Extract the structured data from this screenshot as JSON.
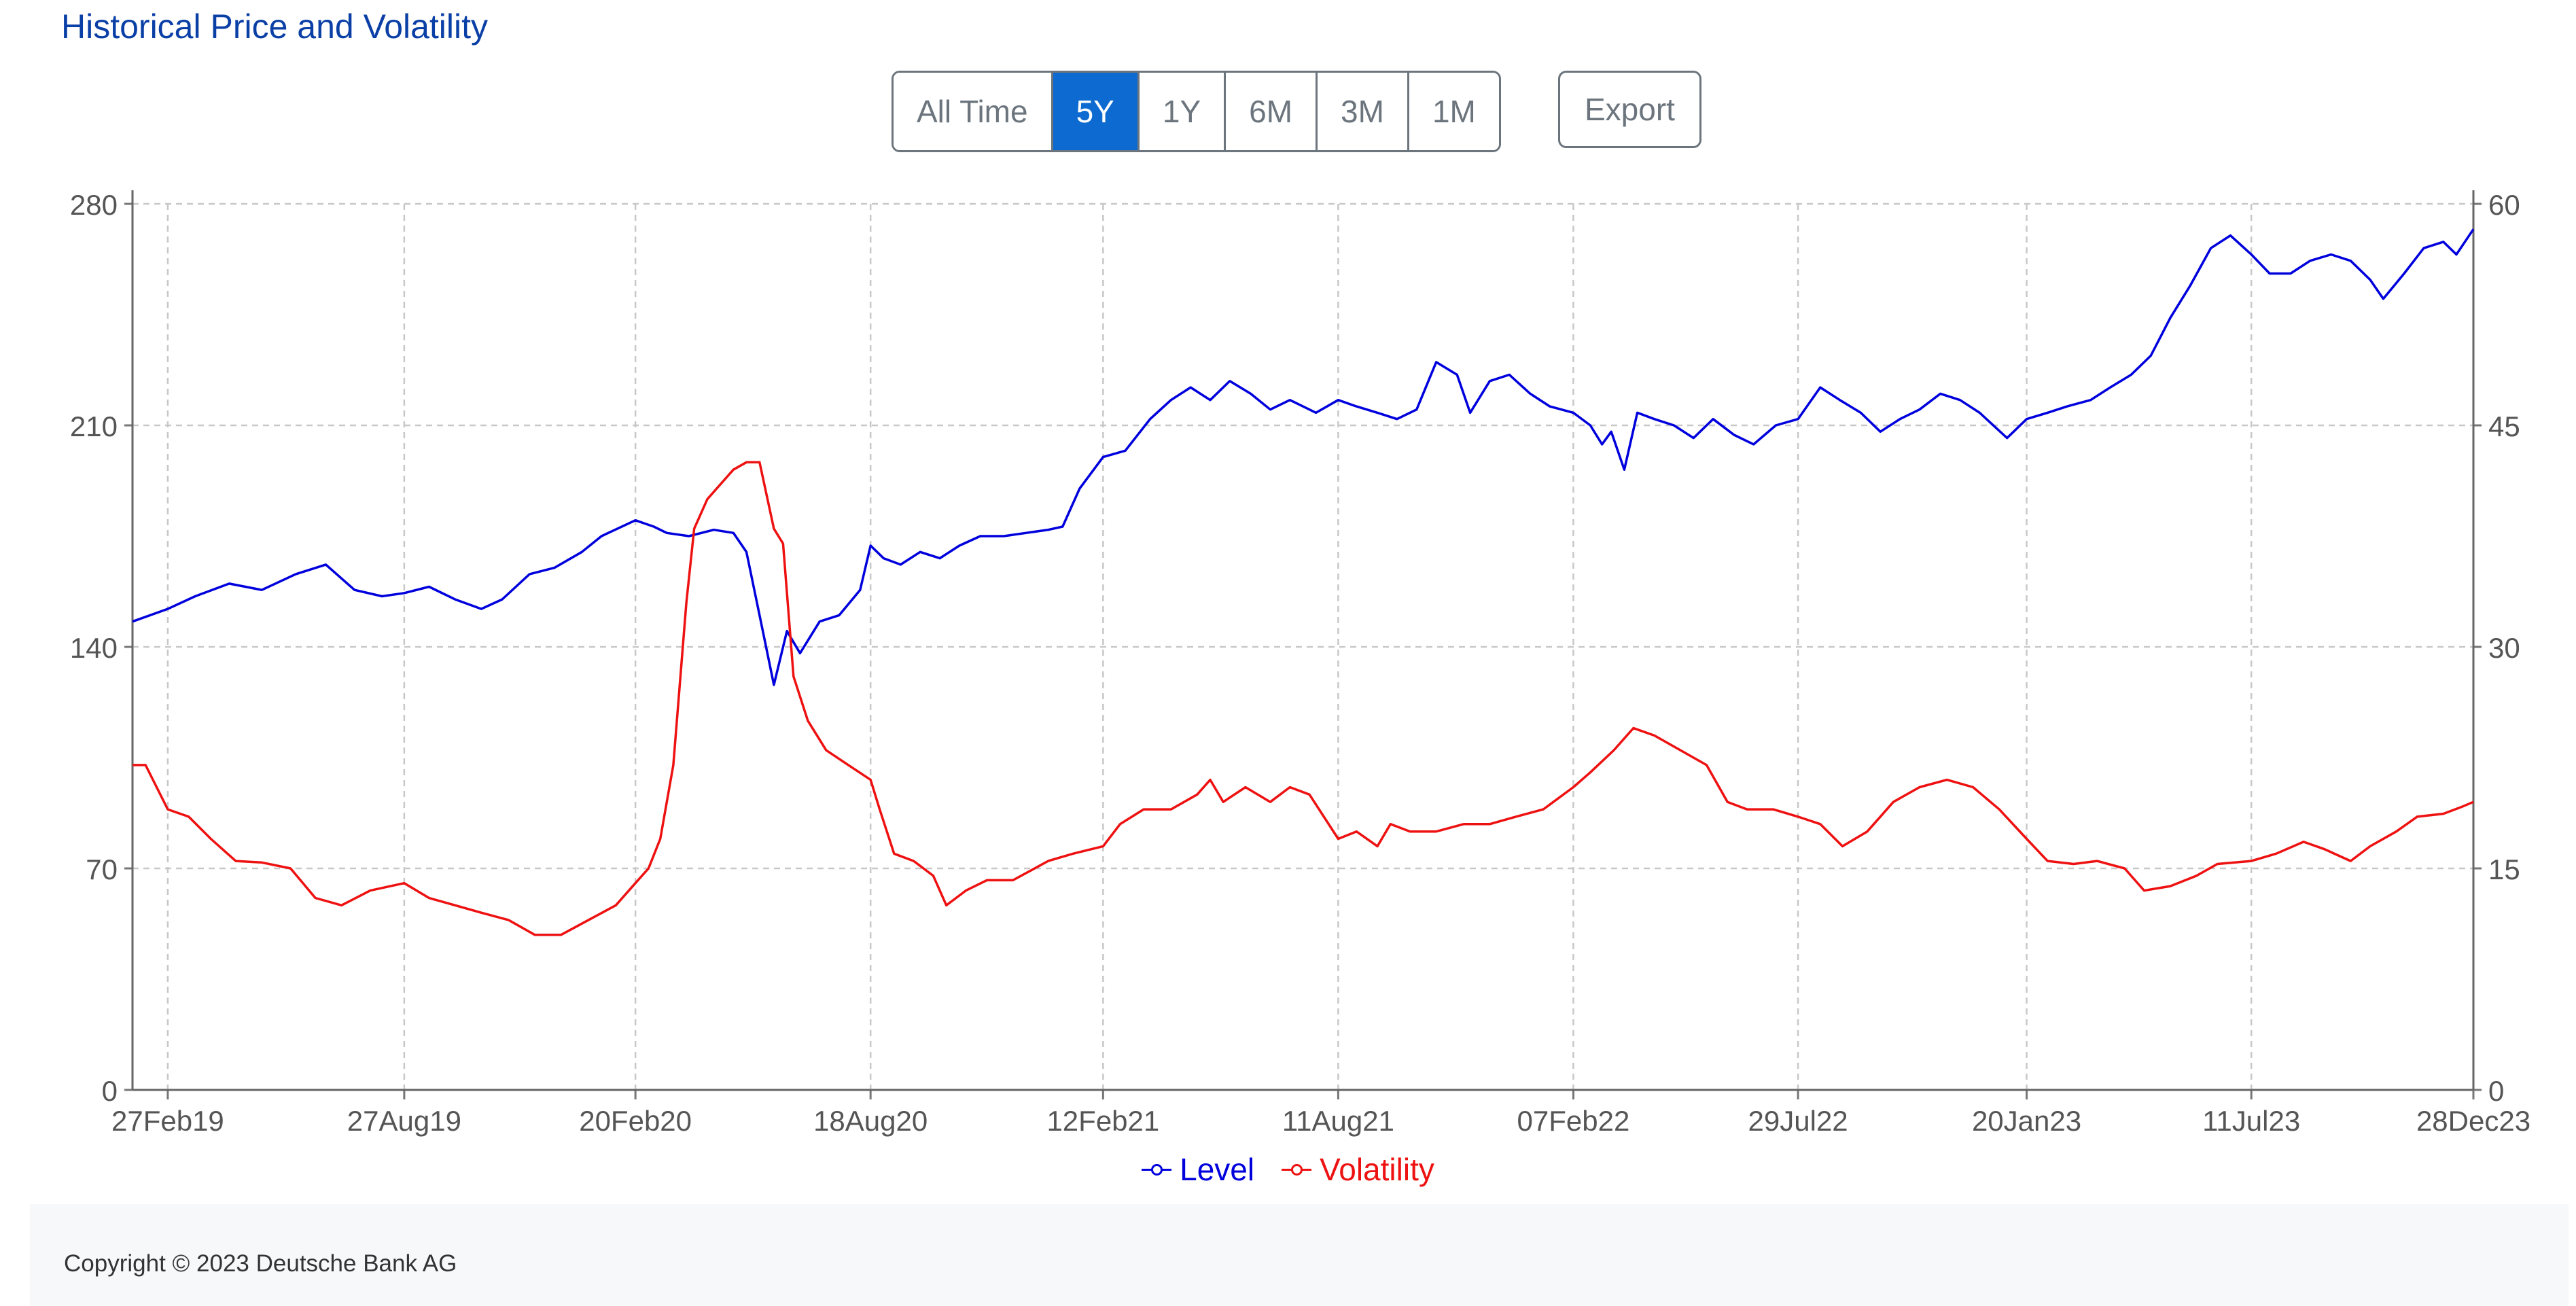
{
  "title": "Historical Price and Volatility",
  "range_buttons": [
    {
      "label": "All Time",
      "active": false
    },
    {
      "label": "5Y",
      "active": true
    },
    {
      "label": "1Y",
      "active": false
    },
    {
      "label": "6M",
      "active": false
    },
    {
      "label": "3M",
      "active": false
    },
    {
      "label": "1M",
      "active": false
    }
  ],
  "export_label": "Export",
  "copyright": "Copyright © 2023 Deutsche Bank AG",
  "chart_data": {
    "type": "line",
    "x_axis": {
      "type": "date",
      "range": [
        "2019-01-31",
        "2023-12-28"
      ],
      "tick_labels": [
        "27Feb19",
        "27Aug19",
        "20Feb20",
        "18Aug20",
        "12Feb21",
        "11Aug21",
        "07Feb22",
        "29Jul22",
        "20Jan23",
        "11Jul23",
        "28Dec23"
      ],
      "tick_dates": [
        "2019-02-27",
        "2019-08-27",
        "2020-02-20",
        "2020-08-18",
        "2021-02-12",
        "2021-08-11",
        "2022-02-07",
        "2022-07-29",
        "2023-01-20",
        "2023-07-11",
        "2023-12-28"
      ]
    },
    "y_axis_left": {
      "range": [
        0,
        280
      ],
      "ticks": [
        0,
        70,
        140,
        210,
        280
      ]
    },
    "y_axis_right": {
      "range": [
        0,
        60
      ],
      "ticks": [
        0,
        15,
        30,
        45,
        60
      ]
    },
    "grid": true,
    "legend_position": "bottom-center",
    "series": [
      {
        "name": "Level",
        "color": "#0000dd",
        "axis": "left",
        "points": [
          [
            "2019-01-31",
            148
          ],
          [
            "2019-02-27",
            152
          ],
          [
            "2019-03-20",
            156
          ],
          [
            "2019-04-15",
            160
          ],
          [
            "2019-05-10",
            158
          ],
          [
            "2019-06-05",
            163
          ],
          [
            "2019-06-28",
            166
          ],
          [
            "2019-07-20",
            158
          ],
          [
            "2019-08-10",
            156
          ],
          [
            "2019-08-27",
            157
          ],
          [
            "2019-09-15",
            159
          ],
          [
            "2019-10-05",
            155
          ],
          [
            "2019-10-25",
            152
          ],
          [
            "2019-11-10",
            155
          ],
          [
            "2019-12-01",
            163
          ],
          [
            "2019-12-20",
            165
          ],
          [
            "2020-01-10",
            170
          ],
          [
            "2020-01-25",
            175
          ],
          [
            "2020-02-20",
            180
          ],
          [
            "2020-03-05",
            178
          ],
          [
            "2020-03-15",
            176
          ],
          [
            "2020-04-01",
            175
          ],
          [
            "2020-04-20",
            177
          ],
          [
            "2020-05-05",
            176
          ],
          [
            "2020-05-15",
            170
          ],
          [
            "2020-05-25",
            150
          ],
          [
            "2020-06-05",
            128
          ],
          [
            "2020-06-15",
            145
          ],
          [
            "2020-06-25",
            138
          ],
          [
            "2020-07-10",
            148
          ],
          [
            "2020-07-25",
            150
          ],
          [
            "2020-08-10",
            158
          ],
          [
            "2020-08-18",
            172
          ],
          [
            "2020-08-28",
            168
          ],
          [
            "2020-09-10",
            166
          ],
          [
            "2020-09-25",
            170
          ],
          [
            "2020-10-10",
            168
          ],
          [
            "2020-10-25",
            172
          ],
          [
            "2020-11-10",
            175
          ],
          [
            "2020-11-28",
            175
          ],
          [
            "2020-12-15",
            176
          ],
          [
            "2021-01-01",
            177
          ],
          [
            "2021-01-12",
            178
          ],
          [
            "2021-01-25",
            190
          ],
          [
            "2021-02-12",
            200
          ],
          [
            "2021-03-01",
            202
          ],
          [
            "2021-03-20",
            212
          ],
          [
            "2021-04-05",
            218
          ],
          [
            "2021-04-20",
            222
          ],
          [
            "2021-05-05",
            218
          ],
          [
            "2021-05-20",
            224
          ],
          [
            "2021-06-05",
            220
          ],
          [
            "2021-06-20",
            215
          ],
          [
            "2021-07-05",
            218
          ],
          [
            "2021-07-25",
            214
          ],
          [
            "2021-08-11",
            218
          ],
          [
            "2021-08-25",
            216
          ],
          [
            "2021-09-10",
            214
          ],
          [
            "2021-09-25",
            212
          ],
          [
            "2021-10-10",
            215
          ],
          [
            "2021-10-25",
            230
          ],
          [
            "2021-11-10",
            226
          ],
          [
            "2021-11-20",
            214
          ],
          [
            "2021-12-05",
            224
          ],
          [
            "2021-12-20",
            226
          ],
          [
            "2022-01-05",
            220
          ],
          [
            "2022-01-20",
            216
          ],
          [
            "2022-02-07",
            214
          ],
          [
            "2022-02-20",
            210
          ],
          [
            "2022-03-01",
            204
          ],
          [
            "2022-03-08",
            208
          ],
          [
            "2022-03-18",
            196
          ],
          [
            "2022-03-28",
            214
          ],
          [
            "2022-04-10",
            212
          ],
          [
            "2022-04-25",
            210
          ],
          [
            "2022-05-10",
            206
          ],
          [
            "2022-05-25",
            212
          ],
          [
            "2022-06-10",
            207
          ],
          [
            "2022-06-25",
            204
          ],
          [
            "2022-07-12",
            210
          ],
          [
            "2022-07-29",
            212
          ],
          [
            "2022-08-15",
            222
          ],
          [
            "2022-08-30",
            218
          ],
          [
            "2022-09-15",
            214
          ],
          [
            "2022-09-30",
            208
          ],
          [
            "2022-10-15",
            212
          ],
          [
            "2022-10-30",
            215
          ],
          [
            "2022-11-15",
            220
          ],
          [
            "2022-11-30",
            218
          ],
          [
            "2022-12-15",
            214
          ],
          [
            "2023-01-05",
            206
          ],
          [
            "2023-01-20",
            212
          ],
          [
            "2023-02-05",
            214
          ],
          [
            "2023-02-20",
            216
          ],
          [
            "2023-03-10",
            218
          ],
          [
            "2023-03-25",
            222
          ],
          [
            "2023-04-10",
            226
          ],
          [
            "2023-04-25",
            232
          ],
          [
            "2023-05-10",
            244
          ],
          [
            "2023-05-25",
            254
          ],
          [
            "2023-06-10",
            266
          ],
          [
            "2023-06-25",
            270
          ],
          [
            "2023-07-11",
            264
          ],
          [
            "2023-07-25",
            258
          ],
          [
            "2023-08-10",
            258
          ],
          [
            "2023-08-25",
            262
          ],
          [
            "2023-09-10",
            264
          ],
          [
            "2023-09-25",
            262
          ],
          [
            "2023-10-10",
            256
          ],
          [
            "2023-10-20",
            250
          ],
          [
            "2023-11-05",
            258
          ],
          [
            "2023-11-20",
            266
          ],
          [
            "2023-12-05",
            268
          ],
          [
            "2023-12-15",
            264
          ],
          [
            "2023-12-28",
            272
          ]
        ]
      },
      {
        "name": "Volatility",
        "color": "#ee1111",
        "axis": "right",
        "points": [
          [
            "2019-01-31",
            22
          ],
          [
            "2019-02-10",
            22
          ],
          [
            "2019-02-27",
            19
          ],
          [
            "2019-03-15",
            18.5
          ],
          [
            "2019-04-01",
            17
          ],
          [
            "2019-04-20",
            15.5
          ],
          [
            "2019-05-10",
            15.4
          ],
          [
            "2019-06-01",
            15
          ],
          [
            "2019-06-20",
            13
          ],
          [
            "2019-07-10",
            12.5
          ],
          [
            "2019-08-01",
            13.5
          ],
          [
            "2019-08-27",
            14
          ],
          [
            "2019-09-15",
            13
          ],
          [
            "2019-10-05",
            12.5
          ],
          [
            "2019-10-25",
            12
          ],
          [
            "2019-11-15",
            11.5
          ],
          [
            "2019-12-05",
            10.5
          ],
          [
            "2019-12-25",
            10.5
          ],
          [
            "2020-01-15",
            11.5
          ],
          [
            "2020-02-05",
            12.5
          ],
          [
            "2020-02-20",
            14
          ],
          [
            "2020-03-01",
            15
          ],
          [
            "2020-03-10",
            17
          ],
          [
            "2020-03-20",
            22
          ],
          [
            "2020-03-30",
            33
          ],
          [
            "2020-04-05",
            38
          ],
          [
            "2020-04-15",
            40
          ],
          [
            "2020-04-25",
            41
          ],
          [
            "2020-05-05",
            42
          ],
          [
            "2020-05-15",
            42.5
          ],
          [
            "2020-05-25",
            42.5
          ],
          [
            "2020-06-05",
            38
          ],
          [
            "2020-06-12",
            37
          ],
          [
            "2020-06-20",
            28
          ],
          [
            "2020-07-01",
            25
          ],
          [
            "2020-07-15",
            23
          ],
          [
            "2020-08-01",
            22
          ],
          [
            "2020-08-18",
            21
          ],
          [
            "2020-08-25",
            19
          ],
          [
            "2020-09-05",
            16
          ],
          [
            "2020-09-20",
            15.5
          ],
          [
            "2020-10-05",
            14.5
          ],
          [
            "2020-10-15",
            12.5
          ],
          [
            "2020-10-30",
            13.5
          ],
          [
            "2020-11-15",
            14.2
          ],
          [
            "2020-12-05",
            14.2
          ],
          [
            "2021-01-01",
            15.5
          ],
          [
            "2021-01-20",
            16
          ],
          [
            "2021-02-12",
            16.5
          ],
          [
            "2021-02-25",
            18
          ],
          [
            "2021-03-15",
            19
          ],
          [
            "2021-04-05",
            19
          ],
          [
            "2021-04-25",
            20
          ],
          [
            "2021-05-05",
            21
          ],
          [
            "2021-05-15",
            19.5
          ],
          [
            "2021-06-01",
            20.5
          ],
          [
            "2021-06-20",
            19.5
          ],
          [
            "2021-07-05",
            20.5
          ],
          [
            "2021-07-20",
            20
          ],
          [
            "2021-08-11",
            17
          ],
          [
            "2021-08-25",
            17.5
          ],
          [
            "2021-09-10",
            16.5
          ],
          [
            "2021-09-20",
            18
          ],
          [
            "2021-10-05",
            17.5
          ],
          [
            "2021-10-25",
            17.5
          ],
          [
            "2021-11-15",
            18
          ],
          [
            "2021-12-05",
            18
          ],
          [
            "2021-12-25",
            18.5
          ],
          [
            "2022-01-15",
            19
          ],
          [
            "2022-02-07",
            20.5
          ],
          [
            "2022-02-20",
            21.5
          ],
          [
            "2022-03-10",
            23
          ],
          [
            "2022-03-25",
            24.5
          ],
          [
            "2022-04-10",
            24
          ],
          [
            "2022-04-30",
            23
          ],
          [
            "2022-05-20",
            22
          ],
          [
            "2022-06-05",
            19.5
          ],
          [
            "2022-06-20",
            19
          ],
          [
            "2022-07-10",
            19
          ],
          [
            "2022-07-29",
            18.5
          ],
          [
            "2022-08-15",
            18
          ],
          [
            "2022-09-01",
            16.5
          ],
          [
            "2022-09-20",
            17.5
          ],
          [
            "2022-10-10",
            19.5
          ],
          [
            "2022-10-30",
            20.5
          ],
          [
            "2022-11-20",
            21
          ],
          [
            "2022-12-10",
            20.5
          ],
          [
            "2022-12-30",
            19
          ],
          [
            "2023-01-20",
            17
          ],
          [
            "2023-02-05",
            15.5
          ],
          [
            "2023-02-25",
            15.3
          ],
          [
            "2023-03-15",
            15.5
          ],
          [
            "2023-04-05",
            15
          ],
          [
            "2023-04-20",
            13.5
          ],
          [
            "2023-05-10",
            13.8
          ],
          [
            "2023-05-30",
            14.5
          ],
          [
            "2023-06-15",
            15.3
          ],
          [
            "2023-07-11",
            15.5
          ],
          [
            "2023-07-30",
            16
          ],
          [
            "2023-08-20",
            16.8
          ],
          [
            "2023-09-05",
            16.3
          ],
          [
            "2023-09-25",
            15.5
          ],
          [
            "2023-10-10",
            16.5
          ],
          [
            "2023-10-30",
            17.5
          ],
          [
            "2023-11-15",
            18.5
          ],
          [
            "2023-12-05",
            18.7
          ],
          [
            "2023-12-20",
            19.2
          ],
          [
            "2023-12-28",
            19.5
          ]
        ]
      }
    ]
  }
}
